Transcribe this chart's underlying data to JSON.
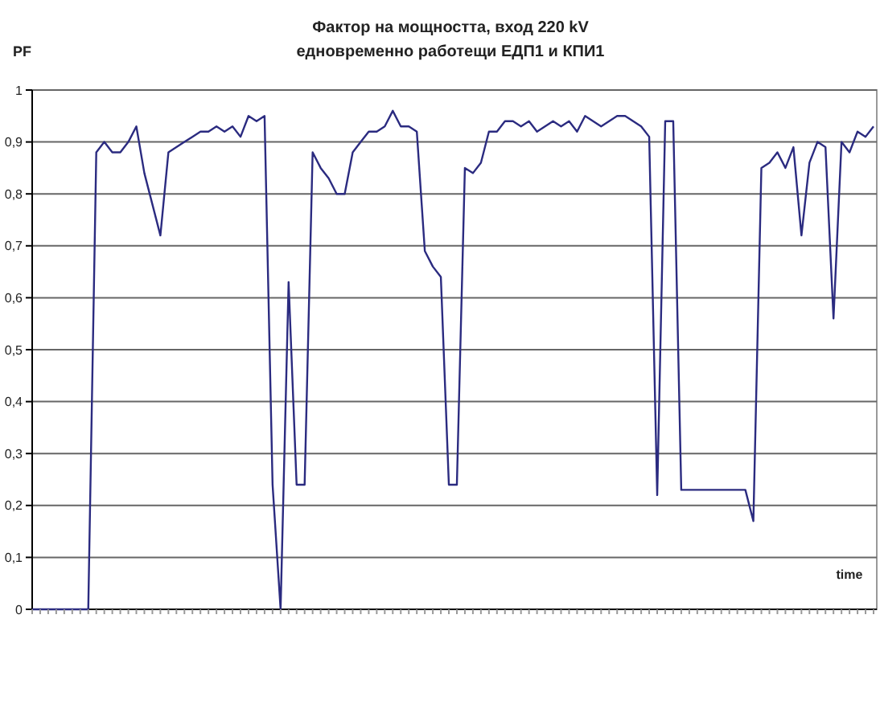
{
  "chart_data": {
    "type": "line",
    "title": "Фактор на мощността, вход 220 kV",
    "subtitle": "едновременно работещи ЕДП1 и КПИ1",
    "ylabel": "PF",
    "xlabel": "time",
    "grid": "y",
    "marker": "none",
    "line_style": "solid",
    "ylim": [
      0,
      1
    ],
    "yticks": [
      0,
      {
        "value": 0.1,
        "label": "0,1"
      },
      {
        "value": 0.2,
        "label": "0,2"
      },
      {
        "value": 0.3,
        "label": "0,3"
      },
      {
        "value": 0.4,
        "label": "0,4"
      },
      {
        "value": 0.5,
        "label": "0,5"
      },
      {
        "value": 0.6,
        "label": "0,6"
      },
      {
        "value": 0.7,
        "label": "0,7"
      },
      {
        "value": 0.8,
        "label": "0,8"
      },
      {
        "value": 0.9,
        "label": "0,9"
      },
      1
    ],
    "categories": [
      null,
      null,
      null,
      null,
      null,
      null,
      null,
      null,
      null,
      null,
      null,
      null,
      null,
      null,
      null,
      null,
      null,
      null,
      null,
      null,
      null,
      null,
      null,
      null,
      null,
      null,
      null,
      null,
      null,
      null,
      null,
      null,
      null,
      null,
      null,
      null,
      null,
      null,
      null,
      null,
      null,
      null,
      null,
      null,
      null,
      null,
      null,
      null,
      null,
      null,
      null,
      null,
      null,
      null,
      null,
      null,
      null,
      null,
      null,
      null,
      null,
      null,
      null,
      null,
      null,
      null,
      null,
      null,
      null,
      null,
      null,
      null,
      null,
      null,
      null,
      null,
      null,
      null,
      null,
      null,
      null,
      null,
      null,
      null,
      null,
      null,
      null,
      null,
      null,
      null,
      null,
      null,
      null,
      null,
      null,
      null,
      null,
      null,
      null,
      null,
      null,
      null,
      null,
      null,
      null,
      null
    ],
    "series": [
      {
        "color": "#2b2b80",
        "values": [
          0,
          0,
          0,
          0,
          0,
          0,
          0,
          0,
          0.88,
          0.9,
          0.88,
          0.88,
          0.9,
          0.93,
          0.84,
          0.78,
          0.72,
          0.88,
          0.89,
          0.9,
          0.91,
          0.92,
          0.92,
          0.93,
          0.92,
          0.93,
          0.91,
          0.95,
          0.94,
          0.95,
          0.24,
          0,
          0.63,
          0.24,
          0.24,
          0.88,
          0.85,
          0.83,
          0.8,
          0.8,
          0.88,
          0.9,
          0.92,
          0.92,
          0.93,
          0.96,
          0.93,
          0.93,
          0.92,
          0.69,
          0.66,
          0.64,
          0.24,
          0.24,
          0.85,
          0.84,
          0.86,
          0.92,
          0.92,
          0.94,
          0.94,
          0.93,
          0.94,
          0.92,
          0.93,
          0.94,
          0.93,
          0.94,
          0.92,
          0.95,
          0.94,
          0.93,
          0.94,
          0.95,
          0.95,
          0.94,
          0.93,
          0.91,
          0.22,
          0.94,
          0.94,
          0.23,
          0.23,
          0.23,
          0.23,
          0.23,
          0.23,
          0.23,
          0.23,
          0.23,
          0.17,
          0.85,
          0.86,
          0.88,
          0.85,
          0.89,
          0.72,
          0.86,
          0.9,
          0.89,
          0.56,
          0.9,
          0.88,
          0.92,
          0.91,
          0.93
        ]
      }
    ]
  }
}
